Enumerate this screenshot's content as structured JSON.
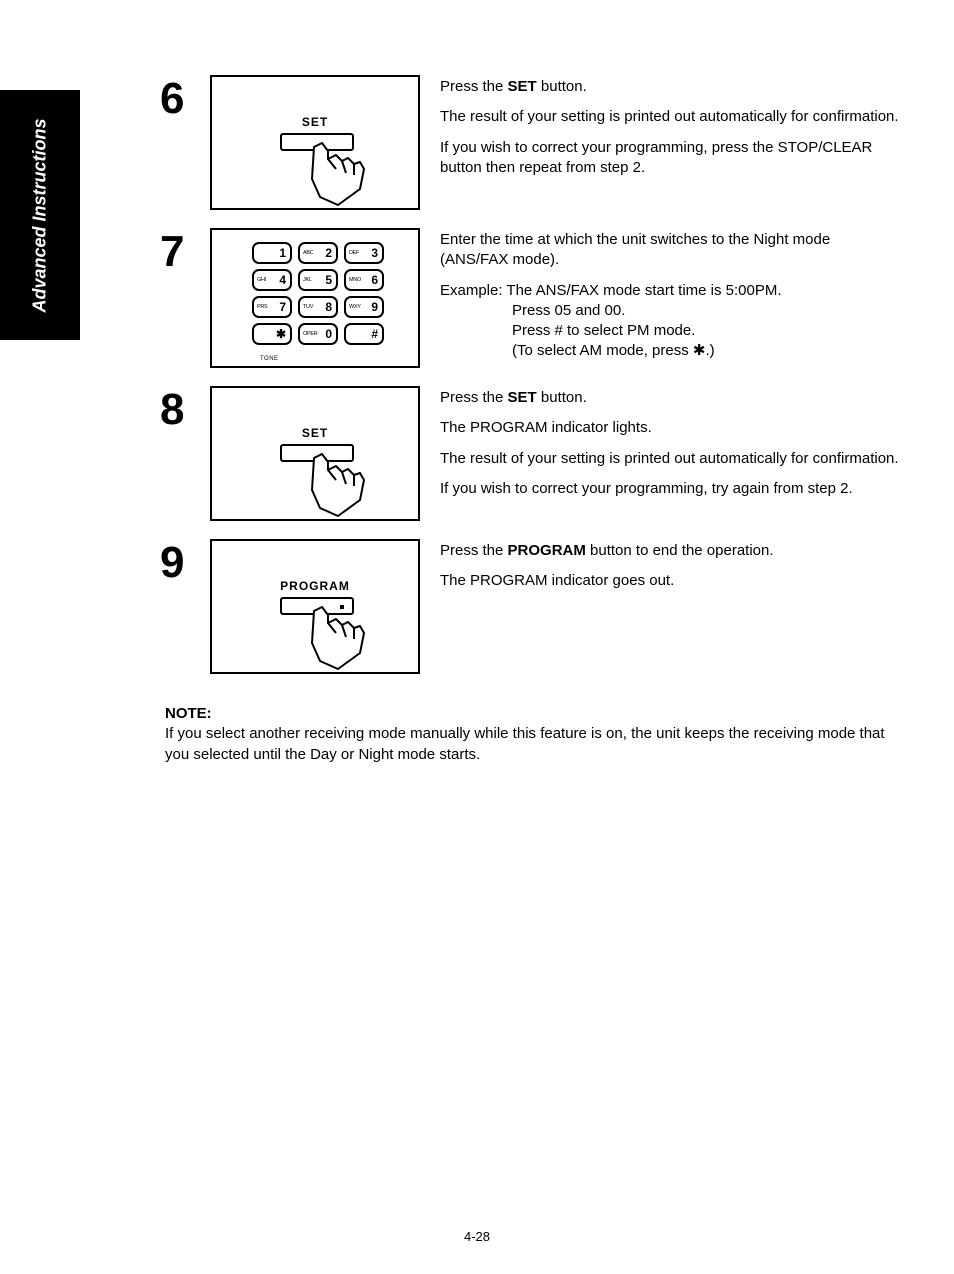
{
  "side_tab": "Advanced Instructions",
  "steps": [
    {
      "num": "6",
      "illust": "set",
      "label": "SET",
      "desc": [
        {
          "t": "line",
          "frags": [
            {
              "text": "Press the "
            },
            {
              "text": "SET",
              "bold": true
            },
            {
              "text": " button."
            }
          ]
        },
        {
          "t": "para",
          "text": "The result of your setting is printed out automatically for confirmation."
        },
        {
          "t": "para",
          "text": "If you wish to correct your programming, press the STOP/CLEAR button then repeat from step 2."
        }
      ]
    },
    {
      "num": "7",
      "illust": "keypad",
      "keys": [
        {
          "sub": "",
          "main": "1"
        },
        {
          "sub": "ABC",
          "main": "2"
        },
        {
          "sub": "DEF",
          "main": "3"
        },
        {
          "sub": "GHI",
          "main": "4"
        },
        {
          "sub": "JKL",
          "main": "5"
        },
        {
          "sub": "MNO",
          "main": "6"
        },
        {
          "sub": "PRS",
          "main": "7"
        },
        {
          "sub": "TUV",
          "main": "8"
        },
        {
          "sub": "WXY",
          "main": "9"
        },
        {
          "sub": "",
          "main": "✱"
        },
        {
          "sub": "OPER",
          "main": "0"
        },
        {
          "sub": "",
          "main": "#"
        }
      ],
      "tone": "TONE",
      "desc": [
        {
          "t": "para",
          "text": "Enter the time at which the unit switches to the Night mode (ANS/FAX mode)."
        },
        {
          "t": "ex_head",
          "text": "Example:  The ANS/FAX mode start time is 5:00PM."
        },
        {
          "t": "ex_line",
          "text": "Press 05 and 00."
        },
        {
          "t": "ex_line",
          "text": "Press # to select PM mode."
        },
        {
          "t": "ex_line",
          "text": "(To select AM mode, press ✱.)"
        }
      ]
    },
    {
      "num": "8",
      "illust": "set",
      "label": "SET",
      "desc": [
        {
          "t": "line",
          "frags": [
            {
              "text": "Press the "
            },
            {
              "text": "SET",
              "bold": true
            },
            {
              "text": " button."
            }
          ]
        },
        {
          "t": "para",
          "text": "The PROGRAM indicator lights."
        },
        {
          "t": "para",
          "text": "The result of your setting is printed out automatically for confirmation."
        },
        {
          "t": "para",
          "text": "If you wish to correct your programming, try again from step 2."
        }
      ]
    },
    {
      "num": "9",
      "illust": "program",
      "label": "PROGRAM",
      "desc": [
        {
          "t": "line",
          "frags": [
            {
              "text": "Press the "
            },
            {
              "text": "PROGRAM",
              "bold": true
            },
            {
              "text": " button to end the operation."
            }
          ]
        },
        {
          "t": "para",
          "text": "The PROGRAM indicator goes out."
        }
      ]
    }
  ],
  "note": {
    "label": "NOTE:",
    "text": "If you select another receiving mode manually while this feature is on, the unit keeps the receiving mode that you selected until the Day or Night mode starts."
  },
  "page_number": "4-28",
  "colors": {
    "bg": "#ffffff",
    "fg": "#000000"
  }
}
